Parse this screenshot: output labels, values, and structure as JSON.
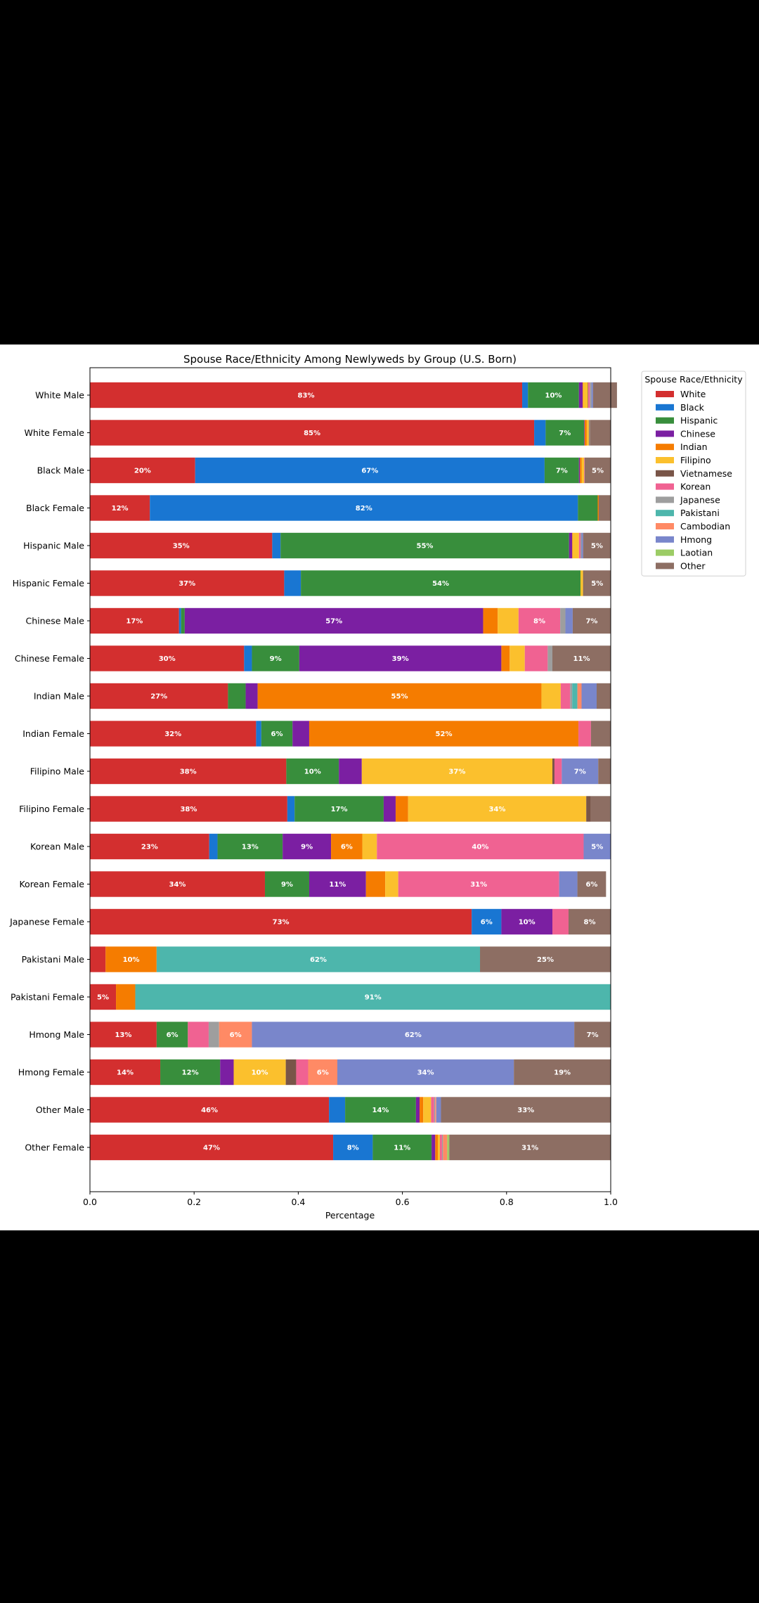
{
  "chart_data": {
    "type": "bar",
    "orientation": "horizontal",
    "stacked": true,
    "title": "Spouse Race/Ethnicity Among Newlyweds by Group (U.S. Born)",
    "xlabel": "Percentage",
    "ylabel": "",
    "xlim": [
      0.0,
      1.0
    ],
    "xticks": [
      "0.0",
      "0.2",
      "0.4",
      "0.6",
      "0.8",
      "1.0"
    ],
    "grid": false,
    "legend": {
      "title": "Spouse Race/Ethnicity",
      "placement": "upper-right-outside"
    },
    "categories": [
      "White Male",
      "White Female",
      "Black Male",
      "Black Female",
      "Hispanic Male",
      "Hispanic Female",
      "Chinese Male",
      "Chinese Female",
      "Indian Male",
      "Indian Female",
      "Filipino Male",
      "Filipino Female",
      "Korean Male",
      "Korean Female",
      "Japanese Female",
      "Pakistani Male",
      "Pakistani Female",
      "Hmong Male",
      "Hmong Female",
      "Other Male",
      "Other Female"
    ],
    "series": [
      {
        "name": "White",
        "color": "#d32f2f",
        "values": [
          0.83,
          0.853,
          0.202,
          0.115,
          0.35,
          0.373,
          0.171,
          0.296,
          0.265,
          0.319,
          0.377,
          0.379,
          0.229,
          0.336,
          0.733,
          0.03,
          0.05,
          0.128,
          0.135,
          0.459,
          0.467
        ]
      },
      {
        "name": "Black",
        "color": "#1976d2",
        "values": [
          0.011,
          0.022,
          0.671,
          0.822,
          0.016,
          0.032,
          0.004,
          0.015,
          0.0,
          0.01,
          0.0,
          0.014,
          0.016,
          0.0,
          0.057,
          0.0,
          0.0,
          0.0,
          0.0,
          0.031,
          0.076
        ]
      },
      {
        "name": "Hispanic",
        "color": "#388e3c",
        "values": [
          0.098,
          0.074,
          0.066,
          0.038,
          0.554,
          0.537,
          0.007,
          0.091,
          0.034,
          0.06,
          0.101,
          0.171,
          0.125,
          0.085,
          0.0,
          0.0,
          0.0,
          0.06,
          0.115,
          0.136,
          0.113
        ]
      },
      {
        "name": "Chinese",
        "color": "#7b1fa2",
        "values": [
          0.007,
          0.001,
          0.002,
          0.0,
          0.006,
          0.0,
          0.573,
          0.388,
          0.023,
          0.032,
          0.044,
          0.023,
          0.093,
          0.109,
          0.098,
          0.0,
          0.0,
          0.0,
          0.026,
          0.007,
          0.007
        ]
      },
      {
        "name": "Indian",
        "color": "#f57c00",
        "values": [
          0.001,
          0.004,
          0.003,
          0.002,
          0.001,
          0.0,
          0.028,
          0.016,
          0.545,
          0.517,
          0.0,
          0.024,
          0.06,
          0.037,
          0.0,
          0.098,
          0.037,
          0.0,
          0.0,
          0.007,
          0.005
        ]
      },
      {
        "name": "Filipino",
        "color": "#fbc02d",
        "values": [
          0.009,
          0.004,
          0.005,
          0.0,
          0.012,
          0.005,
          0.04,
          0.029,
          0.037,
          0.0,
          0.366,
          0.342,
          0.028,
          0.025,
          0.0,
          0.0,
          0.0,
          0.0,
          0.1,
          0.015,
          0.004
        ]
      },
      {
        "name": "Vietnamese",
        "color": "#795548",
        "values": [
          0.001,
          0.001,
          0.0,
          0.001,
          0.0,
          0.001,
          0.0,
          0.0,
          0.0,
          0.0,
          0.004,
          0.009,
          0.0,
          0.0,
          0.0,
          0.0,
          0.0,
          0.0,
          0.02,
          0.0,
          0.0
        ]
      },
      {
        "name": "Korean",
        "color": "#f06292",
        "values": [
          0.003,
          0.0,
          0.001,
          0.0,
          0.003,
          0.0,
          0.08,
          0.044,
          0.018,
          0.024,
          0.014,
          0.0,
          0.397,
          0.309,
          0.031,
          0.0,
          0.0,
          0.04,
          0.023,
          0.006,
          0.004
        ]
      },
      {
        "name": "Japanese",
        "color": "#9e9e9e",
        "values": [
          0.003,
          0.001,
          0.0,
          0.0,
          0.002,
          0.0,
          0.01,
          0.009,
          0.004,
          0.0,
          0.0,
          0.0,
          0.0,
          0.0,
          0.0,
          0.0,
          0.0,
          0.02,
          0.0,
          0.002,
          0.002
        ]
      },
      {
        "name": "Pakistani",
        "color": "#4db6ac",
        "values": [
          0.0,
          0.0,
          0.0,
          0.0,
          0.0,
          0.0,
          0.0,
          0.0,
          0.01,
          0.0,
          0.0,
          0.0,
          0.0,
          0.0,
          0.0,
          0.621,
          0.913,
          0.0,
          0.0,
          0.0,
          0.0
        ]
      },
      {
        "name": "Cambodian",
        "color": "#ff8a65",
        "values": [
          0.0,
          0.0,
          0.0,
          0.0,
          0.0,
          0.0,
          0.0,
          0.0,
          0.008,
          0.0,
          0.0,
          0.0,
          0.0,
          0.0,
          0.0,
          0.0,
          0.0,
          0.063,
          0.056,
          0.002,
          0.008
        ]
      },
      {
        "name": "Hmong",
        "color": "#7986cb",
        "values": [
          0.003,
          0.0,
          0.0,
          0.0,
          0.003,
          0.0,
          0.014,
          0.0,
          0.029,
          0.0,
          0.07,
          0.0,
          0.052,
          0.035,
          0.0,
          0.0,
          0.0,
          0.619,
          0.339,
          0.009,
          0.0
        ]
      },
      {
        "name": "Laotian",
        "color": "#9ccc65",
        "values": [
          0.0,
          0.0,
          0.0,
          0.0,
          0.0,
          0.0,
          0.0,
          0.0,
          0.0,
          0.0,
          0.0,
          0.0,
          0.0,
          0.0,
          0.0,
          0.0,
          0.0,
          0.0,
          0.0,
          0.0,
          0.004
        ]
      },
      {
        "name": "Other",
        "color": "#8d6e63",
        "values": [
          0.046,
          0.04,
          0.05,
          0.022,
          0.053,
          0.052,
          0.073,
          0.112,
          0.027,
          0.038,
          0.024,
          0.037,
          0.0,
          0.055,
          0.081,
          0.251,
          0.0,
          0.07,
          0.186,
          0.326,
          0.31
        ]
      }
    ],
    "label_threshold": 0.05
  }
}
